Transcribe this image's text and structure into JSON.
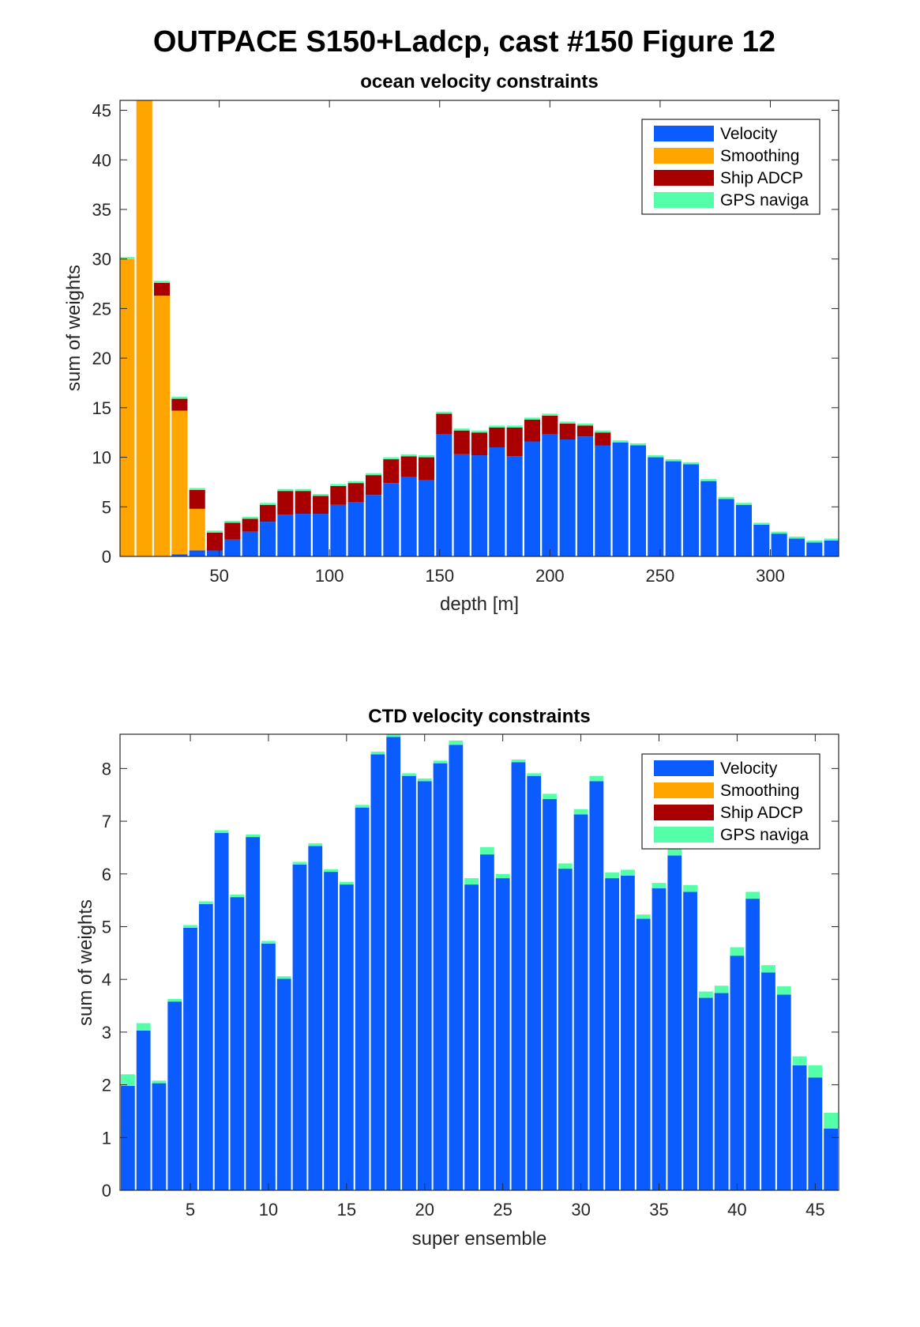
{
  "figure": {
    "title": "OUTPACE S150+Ladcp, cast #150  Figure 12"
  },
  "colors": {
    "velocity": "#0B5CFF",
    "smoothing": "#FFA500",
    "ship_adcp": "#A80000",
    "gps": "#55FFAA"
  },
  "legend": [
    "Velocity",
    "Smoothing",
    "Ship ADCP",
    "GPS naviga"
  ],
  "chart_data": [
    {
      "type": "bar",
      "stacked": true,
      "title": "ocean velocity constraints",
      "xlabel": "depth [m]",
      "ylabel": "sum of weights",
      "xlim": [
        5,
        331
      ],
      "ylim": [
        0,
        46
      ],
      "xticks": [
        50,
        100,
        150,
        200,
        250,
        300
      ],
      "yticks": [
        0,
        5,
        10,
        15,
        20,
        25,
        30,
        35,
        40,
        45
      ],
      "legend_position": "top-right",
      "bar_width": 7.2,
      "x": [
        8,
        16,
        24,
        32,
        40,
        48,
        56,
        64,
        72,
        80,
        88,
        96,
        104,
        112,
        120,
        128,
        136,
        144,
        152,
        160,
        168,
        176,
        184,
        192,
        200,
        208,
        216,
        224,
        232,
        240,
        248,
        256,
        264,
        272,
        280,
        288,
        296,
        304,
        312,
        320,
        328
      ],
      "series": [
        {
          "name": "Velocity",
          "values": [
            0,
            0,
            0,
            0.2,
            0.6,
            0.6,
            1.7,
            2.5,
            3.5,
            4.2,
            4.3,
            4.3,
            5.2,
            5.5,
            6.2,
            7.4,
            8.0,
            7.7,
            12.3,
            10.3,
            10.2,
            11.0,
            10.1,
            11.6,
            12.3,
            11.8,
            12.1,
            11.2,
            11.5,
            11.2,
            10.0,
            9.6,
            9.3,
            7.6,
            5.8,
            5.2,
            3.2,
            2.3,
            1.8,
            1.4,
            1.6
          ]
        },
        {
          "name": "Smoothing",
          "values": [
            30.0,
            46.0,
            26.3,
            14.5,
            4.2,
            0,
            0,
            0,
            0,
            0,
            0,
            0,
            0,
            0,
            0,
            0,
            0,
            0,
            0,
            0,
            0,
            0,
            0,
            0,
            0,
            0,
            0,
            0,
            0,
            0,
            0,
            0,
            0,
            0,
            0,
            0,
            0,
            0,
            0,
            0,
            0
          ]
        },
        {
          "name": "Ship ADCP",
          "values": [
            0,
            0,
            1.3,
            1.2,
            1.9,
            1.8,
            1.7,
            1.3,
            1.7,
            2.4,
            2.3,
            1.8,
            1.9,
            1.9,
            2.0,
            2.4,
            2.1,
            2.3,
            2.1,
            2.4,
            2.3,
            2.0,
            2.9,
            2.2,
            1.9,
            1.6,
            1.1,
            1.3,
            0,
            0,
            0,
            0,
            0,
            0,
            0,
            0,
            0,
            0,
            0,
            0,
            0
          ]
        },
        {
          "name": "GPS naviga",
          "values": [
            0.2,
            0.2,
            0.2,
            0.2,
            0.2,
            0.2,
            0.2,
            0.2,
            0.2,
            0.2,
            0.2,
            0.2,
            0.2,
            0.2,
            0.2,
            0.2,
            0.2,
            0.2,
            0.2,
            0.2,
            0.2,
            0.2,
            0.2,
            0.2,
            0.2,
            0.2,
            0.2,
            0.2,
            0.2,
            0.2,
            0.2,
            0.2,
            0.2,
            0.2,
            0.2,
            0.2,
            0.2,
            0.2,
            0.2,
            0.2,
            0.2
          ]
        }
      ]
    },
    {
      "type": "bar",
      "stacked": true,
      "title": "CTD velocity constraints",
      "xlabel": "super ensemble",
      "ylabel": "sum of weights",
      "xlim": [
        0.5,
        46.5
      ],
      "ylim": [
        0,
        8.65
      ],
      "xticks": [
        5,
        10,
        15,
        20,
        25,
        30,
        35,
        40,
        45
      ],
      "yticks": [
        0,
        1,
        2,
        3,
        4,
        5,
        6,
        7,
        8
      ],
      "legend_position": "top-right",
      "bar_width": 0.9,
      "x": [
        1,
        2,
        3,
        4,
        5,
        6,
        7,
        8,
        9,
        10,
        11,
        12,
        13,
        14,
        15,
        16,
        17,
        18,
        19,
        20,
        21,
        22,
        23,
        24,
        25,
        26,
        27,
        28,
        29,
        30,
        31,
        32,
        33,
        34,
        35,
        36,
        37,
        38,
        39,
        40,
        41,
        42,
        43,
        44,
        45,
        46
      ],
      "series": [
        {
          "name": "Velocity",
          "values": [
            1.98,
            3.03,
            2.03,
            3.58,
            4.98,
            5.43,
            6.78,
            5.56,
            6.7,
            4.68,
            4.01,
            6.18,
            6.53,
            6.04,
            5.8,
            7.26,
            8.27,
            8.6,
            7.86,
            7.76,
            8.1,
            8.45,
            5.8,
            6.37,
            5.92,
            8.12,
            7.86,
            7.42,
            6.1,
            7.13,
            7.76,
            5.92,
            5.97,
            5.15,
            5.73,
            6.35,
            5.66,
            3.65,
            3.74,
            4.45,
            5.53,
            4.13,
            3.71,
            2.37,
            2.14,
            1.17
          ]
        },
        {
          "name": "Smoothing",
          "values": [
            0,
            0,
            0,
            0,
            0,
            0,
            0,
            0,
            0,
            0,
            0,
            0,
            0,
            0,
            0,
            0,
            0,
            0,
            0,
            0,
            0,
            0,
            0,
            0,
            0,
            0,
            0,
            0,
            0,
            0,
            0,
            0,
            0,
            0,
            0,
            0,
            0,
            0,
            0,
            0,
            0,
            0,
            0,
            0,
            0,
            0
          ]
        },
        {
          "name": "Ship ADCP",
          "values": [
            0,
            0,
            0,
            0,
            0,
            0,
            0,
            0,
            0,
            0,
            0,
            0,
            0,
            0,
            0,
            0,
            0,
            0,
            0,
            0,
            0,
            0,
            0,
            0,
            0,
            0,
            0,
            0,
            0,
            0,
            0,
            0,
            0,
            0,
            0,
            0,
            0,
            0,
            0,
            0,
            0,
            0,
            0,
            0,
            0,
            0
          ]
        },
        {
          "name": "GPS naviga",
          "values": [
            0.22,
            0.14,
            0.05,
            0.05,
            0.05,
            0.05,
            0.05,
            0.05,
            0.05,
            0.05,
            0.05,
            0.05,
            0.05,
            0.05,
            0.05,
            0.05,
            0.05,
            0.08,
            0.05,
            0.05,
            0.05,
            0.08,
            0.12,
            0.14,
            0.08,
            0.05,
            0.05,
            0.1,
            0.1,
            0.1,
            0.1,
            0.11,
            0.11,
            0.08,
            0.1,
            0.12,
            0.13,
            0.12,
            0.14,
            0.16,
            0.13,
            0.14,
            0.16,
            0.17,
            0.23,
            0.3
          ]
        }
      ]
    }
  ]
}
